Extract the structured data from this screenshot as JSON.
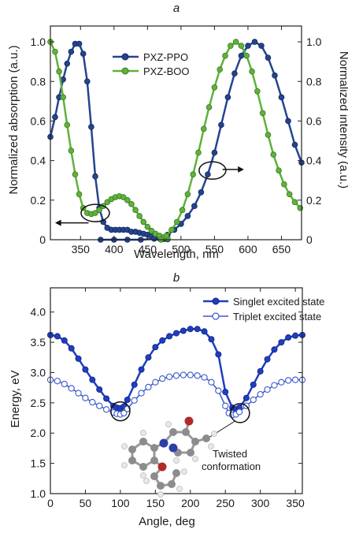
{
  "chart_data": [
    {
      "type": "line",
      "panel": "a",
      "xlabel": "Wavelength, nm",
      "ylabel": "Normalized absorption (a.u.)",
      "ylabel_right": "Normalized intensity (a.u.)",
      "xlim": [
        305,
        680
      ],
      "ylim": [
        0,
        1.08
      ],
      "xticks": [
        "350",
        "400",
        "450",
        "500",
        "550",
        "600",
        "650"
      ],
      "yticks": [
        "0",
        "0.2",
        "0.4",
        "0.6",
        "0.8",
        "1.0"
      ],
      "legend_position": "upper-center",
      "grid": false,
      "series": [
        {
          "name": "PXZ-PPO",
          "color": "#24448e",
          "kind": "absorption",
          "points": [
            [
              305,
              0.52
            ],
            [
              312,
              0.62
            ],
            [
              318,
              0.72
            ],
            [
              324,
              0.81
            ],
            [
              330,
              0.89
            ],
            [
              336,
              0.95
            ],
            [
              342,
              0.99
            ],
            [
              348,
              0.99
            ],
            [
              354,
              0.94
            ],
            [
              360,
              0.8
            ],
            [
              366,
              0.57
            ],
            [
              372,
              0.32
            ],
            [
              378,
              0.16
            ],
            [
              384,
              0.09
            ],
            [
              390,
              0.06
            ],
            [
              396,
              0.05
            ],
            [
              402,
              0.05
            ],
            [
              408,
              0.05
            ],
            [
              414,
              0.05
            ],
            [
              420,
              0.05
            ],
            [
              426,
              0.04
            ],
            [
              432,
              0.04
            ],
            [
              438,
              0.035
            ],
            [
              444,
              0.03
            ],
            [
              450,
              0.025
            ],
            [
              456,
              0.018
            ],
            [
              462,
              0.01
            ],
            [
              468,
              0.006
            ],
            [
              474,
              0.003
            ],
            [
              480,
              0.002
            ]
          ]
        },
        {
          "name": "PXZ-PPO",
          "color": "#24448e",
          "kind": "emission",
          "points": [
            [
              380,
              0.0
            ],
            [
              400,
              0.0
            ],
            [
              420,
              0.0
            ],
            [
              440,
              0.0
            ],
            [
              460,
              0.005
            ],
            [
              470,
              0.01
            ],
            [
              480,
              0.025
            ],
            [
              490,
              0.05
            ],
            [
              500,
              0.08
            ],
            [
              510,
              0.12
            ],
            [
              520,
              0.17
            ],
            [
              530,
              0.24
            ],
            [
              540,
              0.33
            ],
            [
              550,
              0.44
            ],
            [
              560,
              0.58
            ],
            [
              570,
              0.72
            ],
            [
              580,
              0.84
            ],
            [
              590,
              0.93
            ],
            [
              600,
              0.98
            ],
            [
              610,
              1.0
            ],
            [
              620,
              0.98
            ],
            [
              630,
              0.92
            ],
            [
              640,
              0.83
            ],
            [
              650,
              0.72
            ],
            [
              660,
              0.6
            ],
            [
              670,
              0.48
            ],
            [
              680,
              0.39
            ]
          ]
        },
        {
          "name": "PXZ-BOO",
          "color": "#5fb23a",
          "kind": "absorption",
          "points": [
            [
              305,
              1.0
            ],
            [
              312,
              0.95
            ],
            [
              318,
              0.85
            ],
            [
              324,
              0.72
            ],
            [
              330,
              0.58
            ],
            [
              336,
              0.45
            ],
            [
              342,
              0.33
            ],
            [
              348,
              0.23
            ],
            [
              354,
              0.16
            ],
            [
              360,
              0.135
            ],
            [
              366,
              0.13
            ],
            [
              372,
              0.135
            ],
            [
              378,
              0.15
            ],
            [
              384,
              0.17
            ],
            [
              390,
              0.19
            ],
            [
              396,
              0.205
            ],
            [
              402,
              0.215
            ],
            [
              408,
              0.22
            ],
            [
              414,
              0.215
            ],
            [
              420,
              0.2
            ],
            [
              426,
              0.18
            ],
            [
              432,
              0.15
            ],
            [
              438,
              0.12
            ],
            [
              444,
              0.09
            ],
            [
              450,
              0.065
            ],
            [
              456,
              0.045
            ],
            [
              462,
              0.03
            ],
            [
              468,
              0.02
            ],
            [
              474,
              0.012
            ],
            [
              480,
              0.006
            ]
          ]
        },
        {
          "name": "PXZ-BOO",
          "color": "#5fb23a",
          "kind": "emission",
          "points": [
            [
              470,
              0.0
            ],
            [
              478,
              0.02
            ],
            [
              486,
              0.05
            ],
            [
              494,
              0.09
            ],
            [
              502,
              0.15
            ],
            [
              510,
              0.23
            ],
            [
              518,
              0.33
            ],
            [
              526,
              0.44
            ],
            [
              534,
              0.56
            ],
            [
              542,
              0.67
            ],
            [
              550,
              0.77
            ],
            [
              558,
              0.86
            ],
            [
              566,
              0.93
            ],
            [
              574,
              0.98
            ],
            [
              582,
              1.0
            ],
            [
              590,
              0.98
            ],
            [
              598,
              0.93
            ],
            [
              606,
              0.85
            ],
            [
              614,
              0.75
            ],
            [
              622,
              0.64
            ],
            [
              630,
              0.53
            ],
            [
              638,
              0.43
            ],
            [
              646,
              0.35
            ],
            [
              654,
              0.28
            ],
            [
              662,
              0.23
            ],
            [
              670,
              0.19
            ],
            [
              678,
              0.16
            ]
          ]
        }
      ]
    },
    {
      "type": "line",
      "panel": "b",
      "xlabel": "Angle, deg",
      "ylabel": "Energy, eV",
      "xlim": [
        0,
        360
      ],
      "ylim": [
        1.0,
        4.4
      ],
      "xticks": [
        "0",
        "50",
        "100",
        "150",
        "200",
        "250",
        "300",
        "350"
      ],
      "yticks": [
        "1.0",
        "1.5",
        "2.0",
        "2.5",
        "3.0",
        "3.5",
        "4.0"
      ],
      "legend_position": "top-right",
      "grid": false,
      "annotation": "Twisted conformation",
      "series": [
        {
          "name": "Singlet excited state",
          "color": "#1f3fbf",
          "marker": "filled",
          "points": [
            [
              0,
              3.62
            ],
            [
              10,
              3.6
            ],
            [
              20,
              3.53
            ],
            [
              30,
              3.4
            ],
            [
              40,
              3.23
            ],
            [
              50,
              3.05
            ],
            [
              60,
              2.88
            ],
            [
              70,
              2.72
            ],
            [
              80,
              2.57
            ],
            [
              90,
              2.45
            ],
            [
              95,
              2.42
            ],
            [
              100,
              2.41
            ],
            [
              105,
              2.44
            ],
            [
              110,
              2.55
            ],
            [
              120,
              2.8
            ],
            [
              130,
              3.05
            ],
            [
              140,
              3.25
            ],
            [
              150,
              3.42
            ],
            [
              160,
              3.53
            ],
            [
              170,
              3.6
            ],
            [
              180,
              3.65
            ],
            [
              190,
              3.69
            ],
            [
              200,
              3.72
            ],
            [
              210,
              3.72
            ],
            [
              220,
              3.68
            ],
            [
              230,
              3.55
            ],
            [
              240,
              3.3
            ],
            [
              250,
              2.68
            ],
            [
              260,
              2.42
            ],
            [
              265,
              2.39
            ],
            [
              270,
              2.42
            ],
            [
              280,
              2.58
            ],
            [
              290,
              2.8
            ],
            [
              300,
              3.02
            ],
            [
              310,
              3.22
            ],
            [
              320,
              3.38
            ],
            [
              330,
              3.5
            ],
            [
              340,
              3.58
            ],
            [
              350,
              3.61
            ],
            [
              360,
              3.62
            ]
          ]
        },
        {
          "name": "Triplet excited state",
          "color": "#3a58cc",
          "marker": "open",
          "points": [
            [
              0,
              2.88
            ],
            [
              10,
              2.86
            ],
            [
              20,
              2.81
            ],
            [
              30,
              2.74
            ],
            [
              40,
              2.66
            ],
            [
              50,
              2.58
            ],
            [
              60,
              2.51
            ],
            [
              70,
              2.45
            ],
            [
              80,
              2.39
            ],
            [
              90,
              2.34
            ],
            [
              95,
              2.32
            ],
            [
              100,
              2.31
            ],
            [
              105,
              2.33
            ],
            [
              110,
              2.4
            ],
            [
              120,
              2.54
            ],
            [
              130,
              2.66
            ],
            [
              140,
              2.76
            ],
            [
              150,
              2.84
            ],
            [
              160,
              2.9
            ],
            [
              170,
              2.93
            ],
            [
              180,
              2.95
            ],
            [
              190,
              2.96
            ],
            [
              200,
              2.96
            ],
            [
              210,
              2.95
            ],
            [
              220,
              2.92
            ],
            [
              230,
              2.84
            ],
            [
              240,
              2.7
            ],
            [
              250,
              2.45
            ],
            [
              255,
              2.33
            ],
            [
              260,
              2.3
            ],
            [
              265,
              2.31
            ],
            [
              270,
              2.35
            ],
            [
              280,
              2.45
            ],
            [
              290,
              2.55
            ],
            [
              300,
              2.64
            ],
            [
              310,
              2.72
            ],
            [
              320,
              2.79
            ],
            [
              330,
              2.84
            ],
            [
              340,
              2.87
            ],
            [
              350,
              2.88
            ],
            [
              360,
              2.88
            ]
          ]
        }
      ]
    }
  ]
}
